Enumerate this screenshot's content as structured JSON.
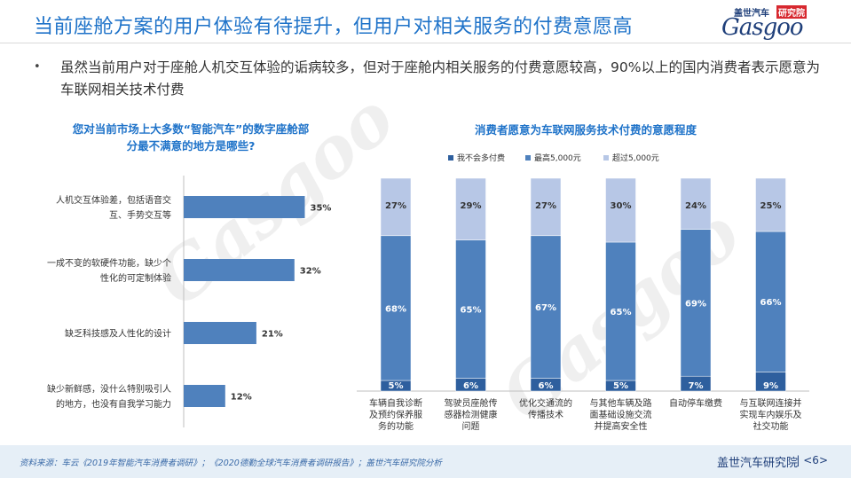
{
  "header": {
    "title": "当前座舱方案的用户体验有待提升，但用户对相关服务的付费意愿高",
    "logo_cn": "盖世汽车",
    "logo_cn_tag": "研究院",
    "logo_en": "Gasgoo"
  },
  "bullet": {
    "text": "虽然当前用户对于座舱人机交互体验的诟病较多，但对于座舱内相关服务的付费意愿较高，90%以上的国内消费者表示愿意为车联网相关技术付费"
  },
  "chart_data": [
    {
      "type": "bar",
      "orientation": "horizontal",
      "title_lines": [
        "您对当前市场上大多数“智能汽车”的数字座舱部",
        "分最不满意的地方是哪些?"
      ],
      "categories": [
        [
          "人机交互体验差，包括语音交",
          "互、手势交互等"
        ],
        [
          "一成不变的软硬件功能，缺少个",
          "性化的可定制体验"
        ],
        [
          "缺乏科技感及人性化的设计"
        ],
        [
          "缺少新鲜感，没什么特别吸引人",
          "的地方，也没有自我学习能力"
        ]
      ],
      "values": [
        35,
        32,
        21,
        12
      ],
      "value_labels": [
        "35%",
        "32%",
        "21%",
        "12%"
      ],
      "xlim": [
        0,
        60
      ],
      "grid": false,
      "color": "#4f81bd"
    },
    {
      "type": "bar",
      "stacked": true,
      "title": "消费者愿意为车联网服务技术付费的意愿程度",
      "legend_position": "top",
      "categories": [
        [
          "车辆自我诊断",
          "及预约保养服",
          "务的功能"
        ],
        [
          "驾驶员座舱传",
          "感器检测健康",
          "问题"
        ],
        [
          "优化交通流的",
          "传播技术"
        ],
        [
          "与其他车辆及路",
          "面基础设施交流",
          "并提高安全性"
        ],
        [
          "自动停车缴费"
        ],
        [
          "与互联网连接并",
          "实现车内娱乐及",
          "社交功能"
        ]
      ],
      "series": [
        {
          "name": "我不会多付费",
          "values": [
            5,
            6,
            6,
            5,
            7,
            9
          ],
          "labels": [
            "5%",
            "6%",
            "6%",
            "5%",
            "7%",
            "9%"
          ],
          "color": "#2e5f9e"
        },
        {
          "name": "最高5,000元",
          "values": [
            68,
            65,
            67,
            65,
            69,
            66
          ],
          "labels": [
            "68%",
            "65%",
            "67%",
            "65%",
            "69%",
            "66%"
          ],
          "color": "#4f81bd"
        },
        {
          "name": "超过5,000元",
          "values": [
            27,
            29,
            27,
            30,
            24,
            25
          ],
          "labels": [
            "27%",
            "29%",
            "27%",
            "30%",
            "24%",
            "25%"
          ],
          "color": "#b7c7e6"
        }
      ],
      "ylim": [
        0,
        100
      ],
      "grid": false
    }
  ],
  "footer": {
    "source": "资料来源：车云《2019年智能汽车消费者调研》；《2020德勤全球汽车消费者调研报告》；盖世汽车研究院分析",
    "org": "盖世汽车研究院",
    "page": "| <6>"
  },
  "colors": {
    "title": "#1f73c9",
    "accent": "#4f81bd",
    "footer_bg": "#e6eff7"
  }
}
